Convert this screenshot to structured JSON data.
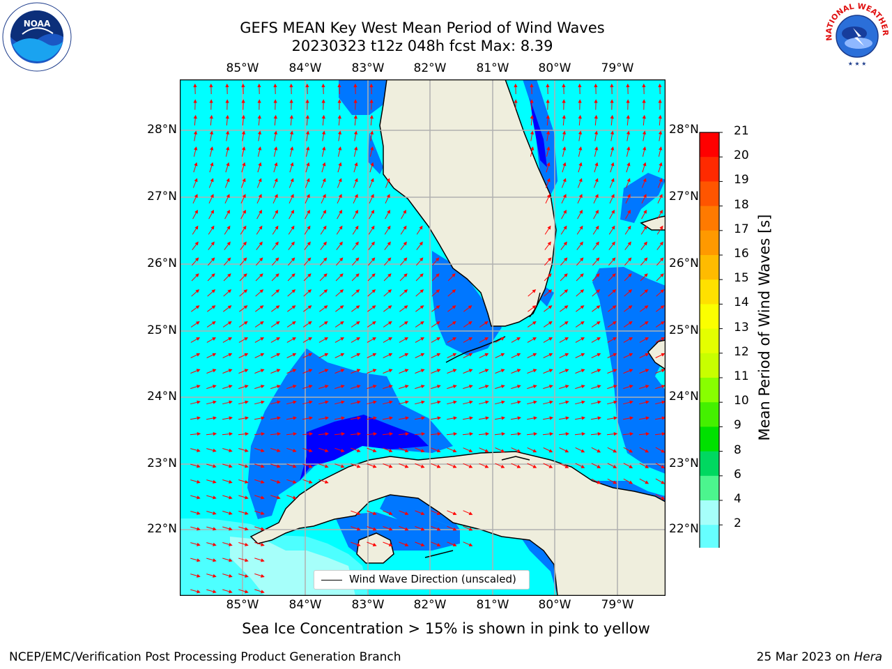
{
  "title_line1": "GEFS MEAN Key West Mean Period of Wind Waves",
  "title_line2": "20230323 t12z 048h fcst   Max: 8.39",
  "lon_ticks": [
    "85°W",
    "84°W",
    "83°W",
    "82°W",
    "81°W",
    "80°W",
    "79°W"
  ],
  "lat_ticks": [
    "28°N",
    "27°N",
    "26°N",
    "25°N",
    "24°N",
    "23°N",
    "22°N"
  ],
  "colorbar": {
    "title": "Mean Period of Wind Waves [s]",
    "labels": [
      "21",
      "20",
      "19",
      "18",
      "17",
      "16",
      "15",
      "14",
      "13",
      "12",
      "11",
      "10",
      "9",
      "8",
      "6",
      "4",
      "2"
    ],
    "colors": [
      "#ff0000",
      "#ff2a00",
      "#ff5500",
      "#ff7a00",
      "#ff9900",
      "#ffbb00",
      "#ffe000",
      "#fbff00",
      "#e4ff00",
      "#c8ff00",
      "#88ff00",
      "#44f000",
      "#00e000",
      "#00d860",
      "#4cf58e",
      "#a6fffa",
      "#66ffff",
      "#33ffff",
      "#00ffff",
      "#0077ff",
      "#0000ff"
    ]
  },
  "legend_text": "Wind Wave Direction (unscaled)",
  "bottom_note": "Sea Ice Concentration > 15% is shown in pink to yellow",
  "footer_left": "NCEP/EMC/Verification Post Processing Product Generation Branch",
  "footer_date": "25 Mar 2023 on",
  "footer_machine": "Hera",
  "logos": {
    "left": "NOAA",
    "right": "NATIONAL WEATHER SERVICE"
  }
}
